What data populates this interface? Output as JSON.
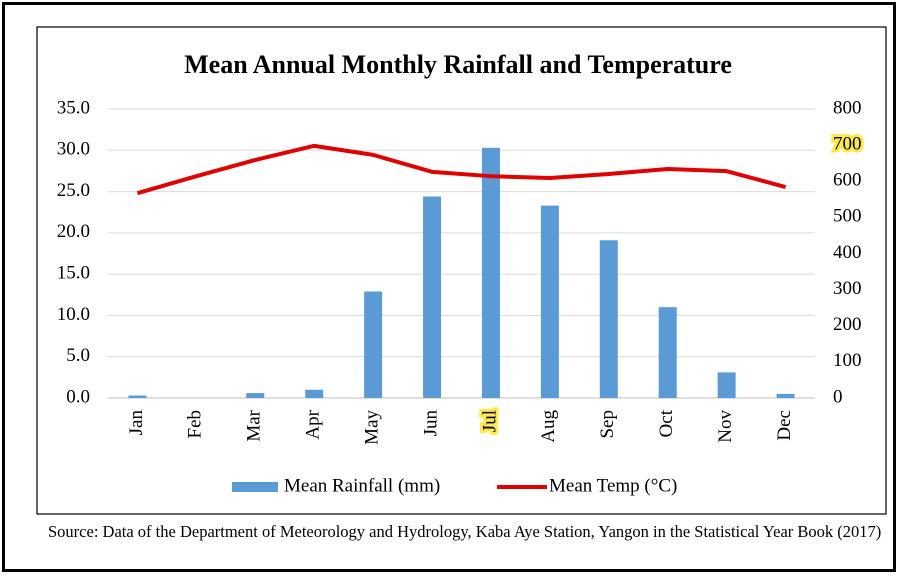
{
  "chart_data": {
    "type": "bar",
    "title": "Mean Annual Monthly Rainfall and Temperature",
    "categories": [
      "Jan",
      "Feb",
      "Mar",
      "Apr",
      "May",
      "Jun",
      "Jul",
      "Aug",
      "Sep",
      "Oct",
      "Nov",
      "Dec"
    ],
    "series": [
      {
        "name": "Mean Rainfall (mm)",
        "type": "bar",
        "color": "#5b9bd5",
        "axis": "y",
        "values": [
          0.3,
          0,
          0.6,
          1.0,
          12.9,
          24.4,
          30.3,
          23.3,
          19.1,
          11.0,
          3.1,
          0.5
        ]
      },
      {
        "name": "Mean Temp (°C)",
        "type": "line",
        "color": "#e00000",
        "axis": "y2",
        "values": [
          567,
          614,
          659,
          698,
          673,
          626,
          614,
          609,
          620,
          634,
          628,
          584
        ]
      }
    ],
    "ylim": [
      0,
      35
    ],
    "yticks": [
      {
        "value": 0,
        "label": "0.0"
      },
      {
        "value": 5,
        "label": "5.0"
      },
      {
        "value": 10,
        "label": "10.0"
      },
      {
        "value": 15,
        "label": "15.0"
      },
      {
        "value": 20,
        "label": "20.0"
      },
      {
        "value": 25,
        "label": "25.0"
      },
      {
        "value": 30,
        "label": "30.0"
      },
      {
        "value": 35,
        "label": "35.0"
      }
    ],
    "y2lim": [
      0,
      800
    ],
    "y2ticks": [
      0,
      100,
      200,
      300,
      400,
      500,
      600,
      700,
      800
    ],
    "grid": true,
    "legend": "bottom"
  },
  "source": "Source: Data of the Department of Meteorology and Hydrology, Kaba Aye Station, Yangon in the Statistical Year Book (2017)"
}
